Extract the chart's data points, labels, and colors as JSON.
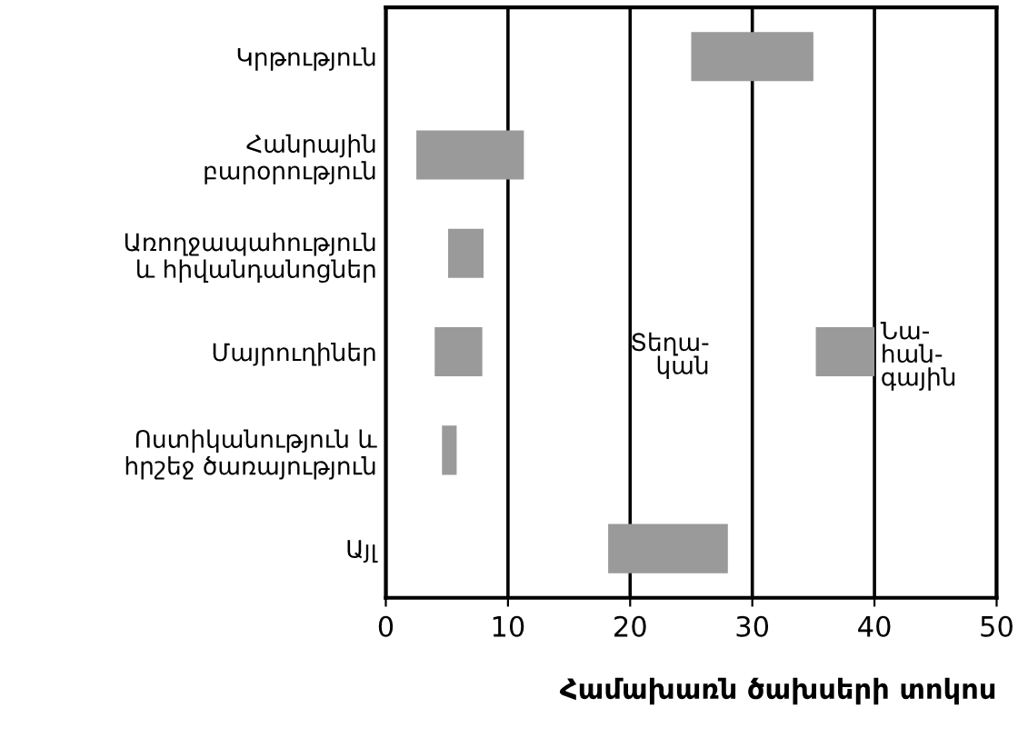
{
  "chart_data": {
    "type": "bar",
    "orientation": "horizontal",
    "xlabel": "Համախառն ծախսերի տոկոս",
    "categories": [
      "Կրթություն",
      "Հանրային\nբարօրություն",
      "Առողջապահություն\nև հիվանդանոցներ",
      "Մայրուղիներ",
      "Ոստիկանություն և\nհրշեջ ծառայություն",
      "Այլ"
    ],
    "series": [
      {
        "color": "#9a9a9a",
        "base": [
          25,
          2.5,
          5.1,
          4,
          4.6,
          18.2
        ],
        "values": [
          10,
          8.8,
          2.9,
          3.9,
          1.2,
          9.8
        ]
      },
      {
        "color": "#9a9a9a",
        "base": [
          null,
          null,
          null,
          35.2,
          null,
          null
        ],
        "values": [
          null,
          null,
          null,
          4.8,
          null,
          null
        ]
      }
    ],
    "annotations": [
      "Տեղա-\nկան",
      "Նա-\nհան-\nգային"
    ],
    "xlim": [
      0,
      50
    ],
    "xticks": [
      0,
      10,
      20,
      30,
      40,
      50
    ],
    "grid": "x"
  }
}
